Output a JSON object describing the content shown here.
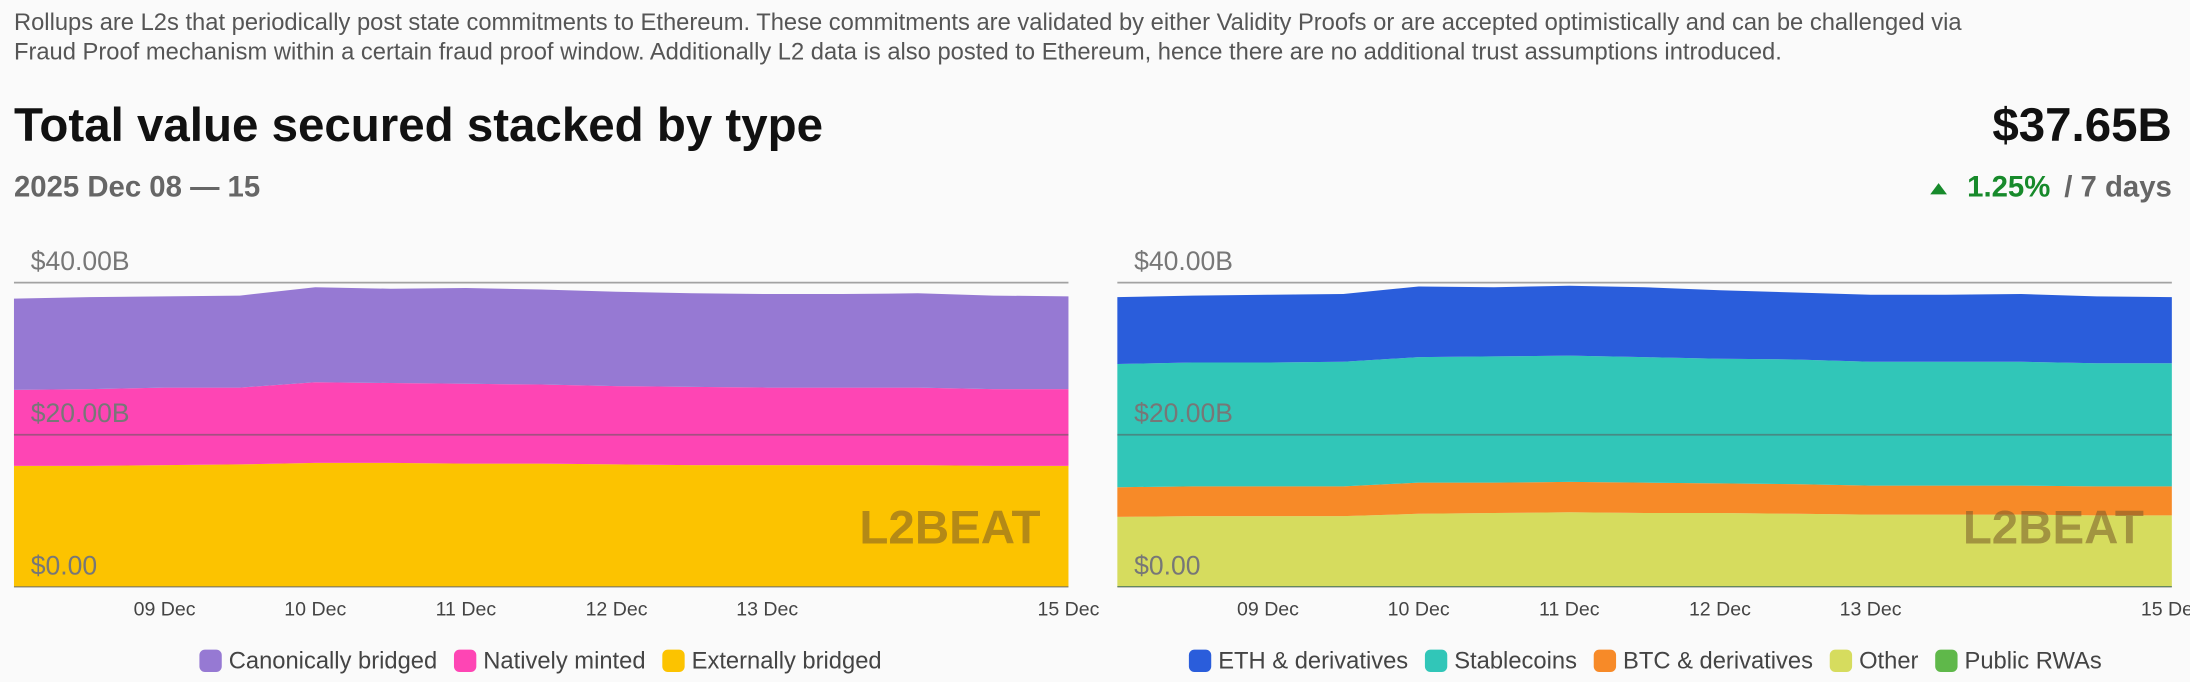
{
  "header": {
    "intro_lines": [
      "Rollups are L2s that periodically post state commitments to Ethereum. These commitments are validated by either Validity Proofs or are accepted optimistically and can be challenged via",
      "Fraud Proof mechanism within a certain fraud proof window. Additionally L2 data is also posted to Ethereum, hence there are no additional trust assumptions introduced."
    ],
    "title": "Total value secured stacked by type",
    "date_range": "2025 Dec 08 — 15",
    "total": "$37.65B",
    "change": "1.25%",
    "change_period": "/ 7 days",
    "watermark": "L2BEAT"
  },
  "chart_data": [
    {
      "type": "stacked-area",
      "categories": [
        null,
        null,
        "09 Dec",
        null,
        "10 Dec",
        null,
        "11 Dec",
        null,
        "12 Dec",
        null,
        "13 Dec",
        null,
        null,
        null,
        "15 Dec"
      ],
      "ylim": [
        0,
        45
      ],
      "yticks": [
        {
          "value": 0,
          "label": "$0.00"
        },
        {
          "value": 20,
          "label": "$20.00B"
        },
        {
          "value": 40,
          "label": "$40.00B"
        }
      ],
      "grid": true,
      "series": [
        {
          "name": "Externally bridged",
          "color": "#fcc300",
          "values": [
            15.9,
            15.9,
            16.0,
            16.1,
            16.3,
            16.3,
            16.2,
            16.2,
            16.1,
            16.0,
            16.0,
            16.0,
            16.0,
            15.9,
            15.9
          ]
        },
        {
          "name": "Natively minted",
          "color": "#fe45b4",
          "values": [
            10.0,
            10.1,
            10.2,
            10.1,
            10.6,
            10.5,
            10.5,
            10.4,
            10.3,
            10.3,
            10.2,
            10.2,
            10.2,
            10.1,
            10.1
          ]
        },
        {
          "name": "Canonically bridged",
          "color": "#9679d3",
          "values": [
            12.0,
            12.1,
            12.0,
            12.1,
            12.5,
            12.4,
            12.6,
            12.5,
            12.4,
            12.3,
            12.3,
            12.3,
            12.4,
            12.3,
            12.2
          ]
        }
      ],
      "legend_order": [
        2,
        1,
        0
      ]
    },
    {
      "type": "stacked-area",
      "categories": [
        null,
        null,
        "09 Dec",
        null,
        "10 Dec",
        null,
        "11 Dec",
        null,
        "12 Dec",
        null,
        "13 Dec",
        null,
        null,
        null,
        "15 Dec"
      ],
      "ylim": [
        0,
        45
      ],
      "yticks": [
        {
          "value": 0,
          "label": "$0.00"
        },
        {
          "value": 20,
          "label": "$20.00B"
        },
        {
          "value": 40,
          "label": "$40.00B"
        }
      ],
      "grid": true,
      "series": [
        {
          "name": "Public RWAs",
          "color": "#5fb84a",
          "values": [
            0.1,
            0.1,
            0.1,
            0.1,
            0.1,
            0.1,
            0.1,
            0.1,
            0.1,
            0.1,
            0.1,
            0.1,
            0.1,
            0.1,
            0.1
          ]
        },
        {
          "name": "Other",
          "color": "#d6dc5e",
          "values": [
            9.1,
            9.2,
            9.2,
            9.2,
            9.5,
            9.6,
            9.7,
            9.6,
            9.6,
            9.5,
            9.4,
            9.4,
            9.4,
            9.3,
            9.3
          ]
        },
        {
          "name": "BTC & derivatives",
          "color": "#f78a28",
          "values": [
            3.9,
            3.9,
            3.9,
            3.9,
            4.1,
            4.0,
            4.0,
            4.0,
            3.9,
            3.9,
            3.8,
            3.8,
            3.8,
            3.8,
            3.8
          ]
        },
        {
          "name": "Stablecoins",
          "color": "#31c6b8",
          "values": [
            16.2,
            16.3,
            16.3,
            16.4,
            16.5,
            16.6,
            16.6,
            16.5,
            16.4,
            16.4,
            16.3,
            16.3,
            16.3,
            16.2,
            16.2
          ]
        },
        {
          "name": "ETH & derivatives",
          "color": "#2a5ddb",
          "values": [
            8.8,
            8.8,
            8.9,
            8.9,
            9.3,
            9.1,
            9.2,
            9.2,
            9.0,
            8.8,
            8.8,
            8.8,
            8.9,
            8.8,
            8.7
          ]
        }
      ],
      "legend_order": [
        4,
        3,
        2,
        1,
        0
      ]
    }
  ]
}
